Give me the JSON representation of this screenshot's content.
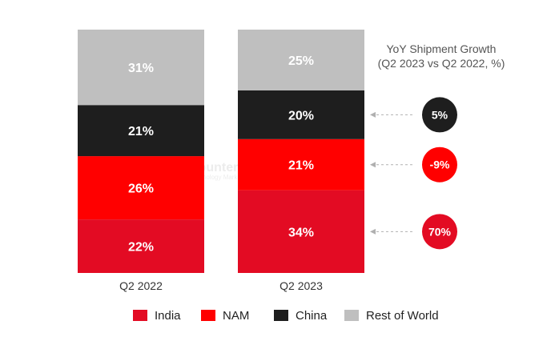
{
  "chart_data": {
    "type": "bar",
    "stacked": true,
    "categories": [
      "Q2 2022",
      "Q2 2023"
    ],
    "series": [
      {
        "name": "India",
        "values": [
          22,
          34
        ],
        "labels": [
          "22%",
          "34%"
        ],
        "color": "#e30b23"
      },
      {
        "name": "NAM",
        "values": [
          26,
          21
        ],
        "labels": [
          "26%",
          "21%"
        ],
        "color": "#ff0000"
      },
      {
        "name": "China",
        "values": [
          21,
          20
        ],
        "labels": [
          "21%",
          "20%"
        ],
        "color": "#1e1e1e"
      },
      {
        "name": "Rest of World",
        "values": [
          31,
          25
        ],
        "labels": [
          "31%",
          "25%"
        ],
        "color": "#bfbfbf"
      }
    ],
    "ylim": [
      0,
      100
    ],
    "legend_position": "bottom",
    "grid": false,
    "growth": {
      "title": [
        "YoY Shipment Growth",
        "(Q2 2023 vs Q2 2022, %)"
      ],
      "items": [
        {
          "series": "China",
          "label": "5%",
          "value": 5,
          "color": "#1e1e1e"
        },
        {
          "series": "NAM",
          "label": "-9%",
          "value": -9,
          "color": "#ff0000"
        },
        {
          "series": "India",
          "label": "70%",
          "value": 70,
          "color": "#e30b23"
        }
      ]
    },
    "watermark": {
      "text": "Counterpoint",
      "subtext": "Technology Market Research"
    }
  }
}
